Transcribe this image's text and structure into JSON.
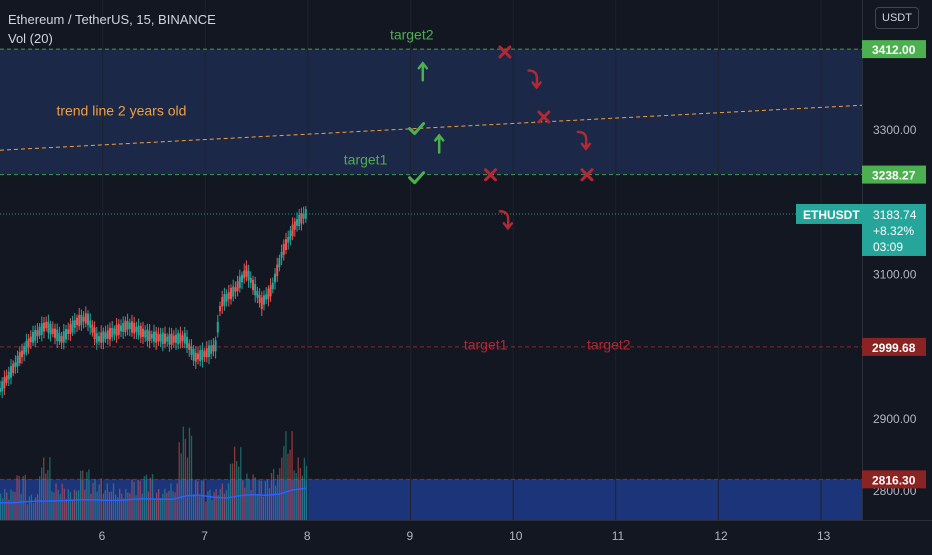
{
  "header": {
    "symbol_title": "Ethereum / TetherUS, 15, BINANCE",
    "volume_label": "Vol (20)",
    "currency_button": "USDT"
  },
  "price_scale": {
    "tick_labels": [
      "3300.00",
      "3100.00",
      "2900.00",
      "2800.00"
    ]
  },
  "time_scale": {
    "tick_labels": [
      "6",
      "7",
      "8",
      "9",
      "10",
      "11",
      "12",
      "13"
    ]
  },
  "price_badges": [
    {
      "label": "3412.00",
      "color": "#4caf50"
    },
    {
      "label": "3238.27",
      "color": "#4caf50"
    },
    {
      "label": "2999.68",
      "color": "#8b2323"
    },
    {
      "label": "2816.30",
      "color": "#8b2323"
    }
  ],
  "ticker_tag": {
    "symbol": "ETHUSDT",
    "price": "3183.74",
    "change": "+8.32%",
    "countdown": "03:09",
    "color": "#26a69a"
  },
  "annotations": {
    "trend_line_label": "trend line 2 years old",
    "green_target2": "target2",
    "green_target1": "target1",
    "red_target1": "target1",
    "red_target2": "target2"
  },
  "colors": {
    "background": "#131722",
    "up": "#26a69a",
    "down": "#ef5350",
    "green_annotation": "#4caf50",
    "red_annotation": "#b22833",
    "trend_line": "#f0a040",
    "zone_fill": "#1f2b4d",
    "volume_zone": "#1e3a8a",
    "volume_ma": "#2962ff"
  },
  "chart_data": {
    "type": "candlestick",
    "title": "Ethereum / TetherUS, 15, BINANCE",
    "x_label": "",
    "y_label": "",
    "x_range": [
      "5",
      "13"
    ],
    "y_range": [
      2760,
      3480
    ],
    "price_levels": [
      {
        "price": 3412.0,
        "style": "dashed",
        "color": "green"
      },
      {
        "price": 3238.27,
        "style": "dashed",
        "color": "green"
      },
      {
        "price": 3183.74,
        "style": "dotted",
        "color": "teal"
      },
      {
        "price": 2999.68,
        "style": "dashed",
        "color": "red"
      },
      {
        "price": 2816.3,
        "style": "dashed",
        "color": "red"
      }
    ],
    "trend_line": {
      "label": "trend line 2 years old",
      "start": {
        "x": 5.0,
        "y": 3272
      },
      "end": {
        "x": 13.5,
        "y": 3335
      }
    },
    "zones": [
      {
        "from": 3238.27,
        "to": 3412.0,
        "color": "#1f2b4d"
      },
      {
        "from": 2760,
        "to": 2816.3,
        "color": "#1e3a8a"
      }
    ],
    "price_path": [
      {
        "x": 5.0,
        "y": 2940
      },
      {
        "x": 5.15,
        "y": 2975
      },
      {
        "x": 5.3,
        "y": 3010
      },
      {
        "x": 5.45,
        "y": 3030
      },
      {
        "x": 5.6,
        "y": 3010
      },
      {
        "x": 5.75,
        "y": 3035
      },
      {
        "x": 5.85,
        "y": 3040
      },
      {
        "x": 5.95,
        "y": 3010
      },
      {
        "x": 6.1,
        "y": 3020
      },
      {
        "x": 6.25,
        "y": 3030
      },
      {
        "x": 6.45,
        "y": 3015
      },
      {
        "x": 6.65,
        "y": 3010
      },
      {
        "x": 6.8,
        "y": 3012
      },
      {
        "x": 6.9,
        "y": 2985
      },
      {
        "x": 7.0,
        "y": 2990
      },
      {
        "x": 7.1,
        "y": 3000
      },
      {
        "x": 7.15,
        "y": 3060
      },
      {
        "x": 7.3,
        "y": 3080
      },
      {
        "x": 7.4,
        "y": 3105
      },
      {
        "x": 7.55,
        "y": 3060
      },
      {
        "x": 7.65,
        "y": 3080
      },
      {
        "x": 7.75,
        "y": 3130
      },
      {
        "x": 7.88,
        "y": 3170
      },
      {
        "x": 7.98,
        "y": 3183.74
      }
    ],
    "volume": {
      "values": [
        0.3,
        0.45,
        0.25,
        0.6,
        0.35,
        0.3,
        0.5,
        0.4,
        0.35,
        0.3,
        0.4,
        0.45,
        0.3,
        0.35,
        0.9,
        0.4,
        0.3,
        0.35,
        0.7,
        0.45,
        0.4,
        0.5,
        0.85,
        0.6
      ],
      "ma_values": [
        0.3,
        0.3,
        0.32,
        0.33,
        0.33,
        0.34,
        0.35,
        0.35,
        0.34,
        0.34,
        0.36,
        0.37,
        0.36,
        0.36,
        0.42,
        0.43,
        0.4,
        0.38,
        0.42,
        0.44,
        0.43,
        0.45,
        0.52,
        0.55
      ]
    },
    "markers": [
      {
        "type": "check",
        "color": "green",
        "x": 9.05,
        "y": 3302
      },
      {
        "type": "check",
        "color": "green",
        "x": 9.05,
        "y": 3234
      },
      {
        "type": "arrow-up",
        "color": "green",
        "x": 9.12,
        "y": 3380
      },
      {
        "type": "arrow-up",
        "color": "green",
        "x": 9.28,
        "y": 3280
      },
      {
        "type": "cross",
        "color": "red",
        "x": 9.92,
        "y": 3408
      },
      {
        "type": "cross",
        "color": "red",
        "x": 10.3,
        "y": 3318
      },
      {
        "type": "cross",
        "color": "red",
        "x": 9.78,
        "y": 3238
      },
      {
        "type": "cross",
        "color": "red",
        "x": 10.72,
        "y": 3238
      },
      {
        "type": "arrow-down",
        "color": "red",
        "x": 10.2,
        "y": 3370
      },
      {
        "type": "arrow-down",
        "color": "red",
        "x": 10.68,
        "y": 3285
      },
      {
        "type": "arrow-down",
        "color": "red",
        "x": 9.92,
        "y": 3175
      }
    ]
  }
}
